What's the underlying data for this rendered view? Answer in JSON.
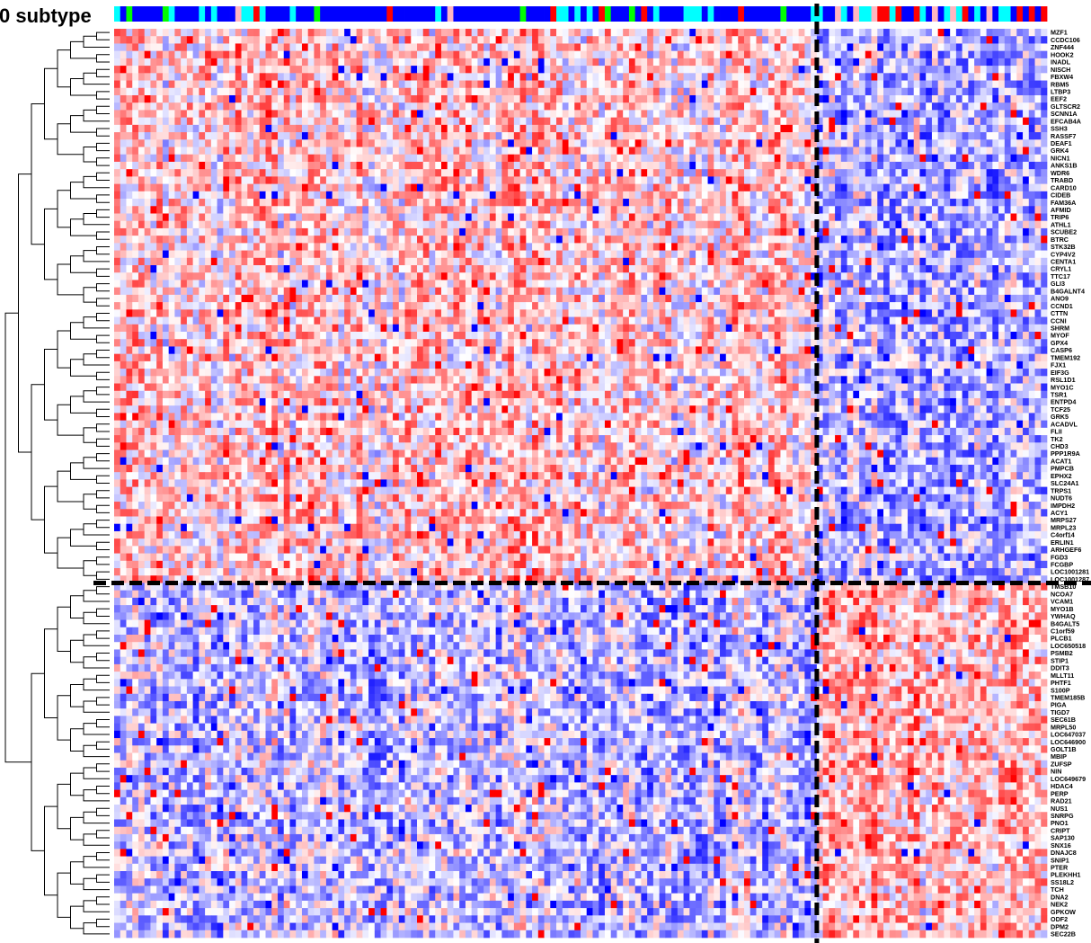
{
  "chart_data": {
    "type": "heatmap",
    "title": "0 subtype",
    "column_annotation_colors": {
      "blue": "#0000ff",
      "cyan": "#00ffff",
      "green": "#00ff00",
      "red": "#ff0000",
      "pink": "#ffb6c1"
    },
    "value_colors": {
      "low": "#0000ff",
      "mid": "#ffffff",
      "high": "#ff0000"
    },
    "num_columns": 154,
    "separator_line": "dashed black",
    "genes": [
      "MZF1",
      "CCDC106",
      "ZNF444",
      "HOOK2",
      "INADL",
      "NISCH",
      "FBXW4",
      "RBM5",
      "LTBP3",
      "EEF2",
      "GLTSCR2",
      "SCNN1A",
      "EFCAB4A",
      "SSH3",
      "RASSF7",
      "DEAF1",
      "GRK4",
      "NICN1",
      "ANKS1B",
      "WDR6",
      "TRABD",
      "CARD10",
      "CIDEB",
      "FAM36A",
      "AFMID",
      "TRIP6",
      "ATHL1",
      "SCUBE2",
      "BTRC",
      "STK32B",
      "CYP4V2",
      "CENTA1",
      "CRYL1",
      "TTC17",
      "GLI3",
      "B4GALNT4",
      "ANO9",
      "CCND1",
      "CTTN",
      "CCNI",
      "SHRM",
      "MYOF",
      "GPX4",
      "CASP6",
      "TMEM192",
      "FJX1",
      "EIF3G",
      "RSL1D1",
      "MYO1C",
      "TSR1",
      "ENTPD4",
      "TCF25",
      "GRK5",
      "ACADVL",
      "FLII",
      "TK2",
      "CHD3",
      "PPP1R9A",
      "ACAT1",
      "PMPCB",
      "EPHX2",
      "SLC24A1",
      "TRPS1",
      "NUDT6",
      "IMPDH2",
      "ACY1",
      "MRPS27",
      "MRPL23",
      "C4orf14",
      "ERLIN1",
      "ARHGEF6",
      "FGD3",
      "FCGBP",
      "LOC1001281",
      "LOC1001287",
      "TMSB10",
      "NCOA7",
      "VCAM1",
      "MYO1B",
      "YWHAQ",
      "B4GALT5",
      "C1orf59",
      "PLCB1",
      "LOC650518",
      "PSMB2",
      "STIP1",
      "DDIT3",
      "MLLT11",
      "PHTF1",
      "S100P",
      "TMEM185B",
      "PIGA",
      "TIGD7",
      "SEC61B",
      "MRPL50",
      "LOC647037",
      "LOC646900",
      "GOLT1B",
      "MBIP",
      "ZUFSP",
      "NIN",
      "LOC649679",
      "HDAC4",
      "PERP",
      "RAD21",
      "NUS1",
      "SNRPG",
      "PNO1",
      "CRIPT",
      "SAP130",
      "SNX16",
      "DNAJC8",
      "SNIP1",
      "PTER",
      "PLEKHH1",
      "SS18L2",
      "TCH",
      "DNA2",
      "NEK2",
      "GPKOW",
      "ODF2",
      "DPM2",
      "SEC22B"
    ]
  }
}
